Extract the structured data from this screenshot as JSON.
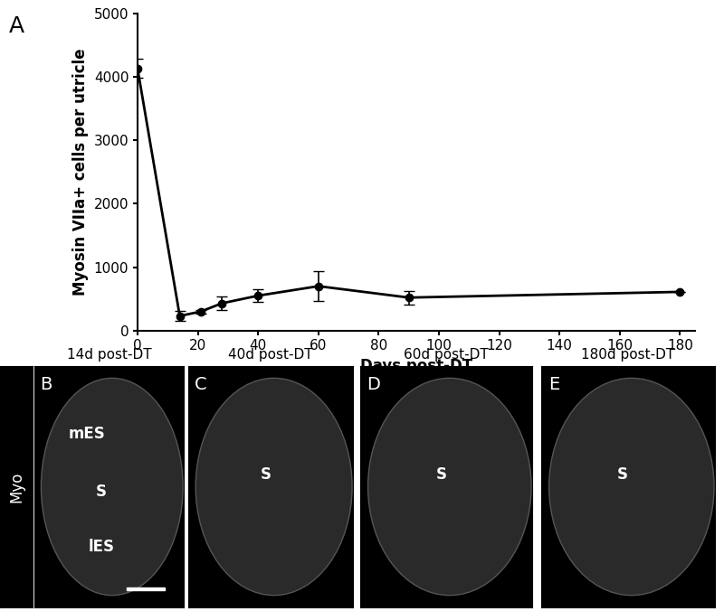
{
  "chart_data": {
    "type": "line",
    "panel_label": "A",
    "x_label": "Days post-DT",
    "y_label": "Myosin VIIa+ cells per utricle",
    "x": [
      0,
      14,
      21,
      28,
      40,
      60,
      90,
      180
    ],
    "values": [
      4130,
      230,
      300,
      430,
      550,
      700,
      520,
      610
    ],
    "errors": [
      150,
      80,
      30,
      110,
      100,
      240,
      110,
      0
    ],
    "color": "#000000",
    "marker": "o",
    "line_style": "solid",
    "xlim": [
      0,
      185
    ],
    "xticks": [
      0,
      20,
      40,
      60,
      80,
      100,
      120,
      140,
      160,
      180
    ],
    "ylim": [
      0,
      5000
    ],
    "yticks": [
      0,
      1000,
      2000,
      3000,
      4000,
      5000
    ],
    "grid": false
  },
  "image_panels": {
    "row_label": "Myo",
    "panels": [
      {
        "label": "B",
        "title": "14d post-DT",
        "annotations": [
          "mES",
          "S",
          "lES"
        ]
      },
      {
        "label": "C",
        "title": "40d post-DT",
        "annotations": [
          "S"
        ]
      },
      {
        "label": "D",
        "title": "60d post-DT",
        "annotations": [
          "S"
        ]
      },
      {
        "label": "E",
        "title": "180d post-DT",
        "annotations": [
          "S"
        ]
      }
    ]
  }
}
